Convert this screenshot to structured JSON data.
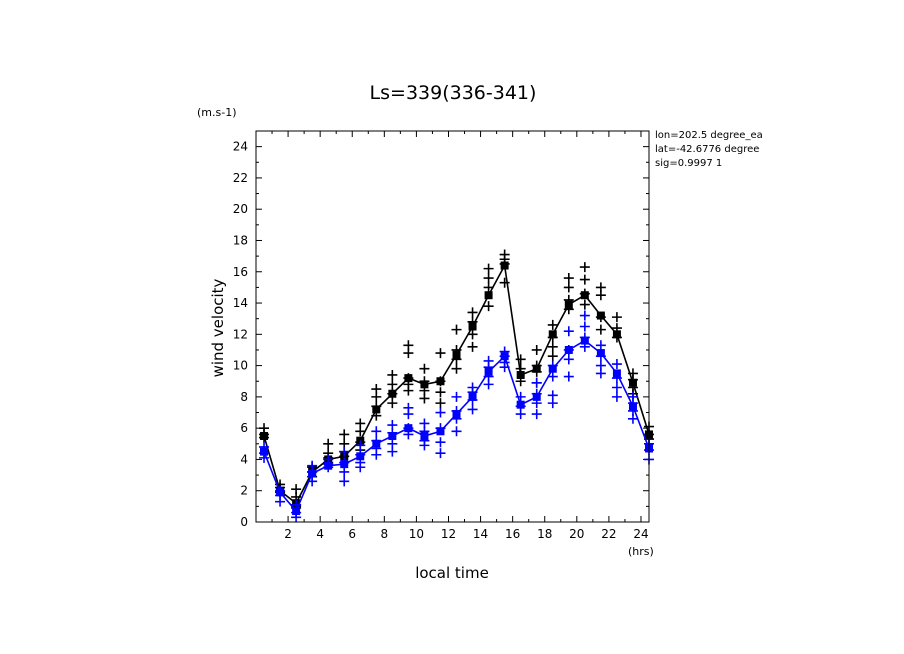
{
  "chart_data": {
    "type": "line",
    "title": "Ls=339(336-341)",
    "xlabel": "local time",
    "ylabel": "wind velocity",
    "y_unit": "(m.s-1)",
    "x_unit": "(hrs)",
    "xlim": [
      0,
      24.5
    ],
    "ylim": [
      0,
      25
    ],
    "x_ticks": [
      2,
      4,
      6,
      8,
      10,
      12,
      14,
      16,
      18,
      20,
      22,
      24
    ],
    "y_ticks": [
      0,
      2,
      4,
      6,
      8,
      10,
      12,
      14,
      16,
      18,
      20,
      22,
      24
    ],
    "annotations": [
      "lon=202.5 degree_ea",
      "lat=-42.6776 degree",
      "sig=0.9997 1"
    ],
    "x": [
      0.5,
      1.5,
      2.5,
      3.5,
      4.5,
      5.5,
      6.5,
      7.5,
      8.5,
      9.5,
      10.5,
      11.5,
      12.5,
      13.5,
      14.5,
      15.5,
      16.5,
      17.5,
      18.5,
      19.5,
      20.5,
      21.5,
      22.5,
      23.5,
      24.5
    ],
    "series": [
      {
        "color": "#000000",
        "values": [
          5.5,
          2.0,
          1.2,
          3.2,
          4.0,
          4.2,
          5.2,
          7.2,
          8.2,
          9.2,
          8.8,
          9.0,
          10.7,
          12.5,
          14.5,
          16.4,
          9.4,
          9.8,
          12.0,
          13.9,
          14.5,
          13.2,
          12.0,
          8.9,
          5.6
        ],
        "scatter": [
          [
            5.6,
            6.0,
            5.4
          ],
          [
            2.4,
            2.2,
            1.9
          ],
          [
            2.1,
            1.6,
            1.0,
            0.9
          ],
          [
            3.5,
            3.2,
            2.9
          ],
          [
            5.0,
            4.4,
            4.1,
            3.8
          ],
          [
            5.6,
            5.0,
            4.5,
            4.2
          ],
          [
            6.3,
            5.8,
            5.1,
            4.6
          ],
          [
            8.5,
            8.0,
            7.4,
            6.8
          ],
          [
            9.4,
            8.8,
            8.2,
            7.6
          ],
          [
            11.3,
            10.8,
            9.2,
            8.8,
            8.4
          ],
          [
            9.8,
            9.0,
            8.4,
            7.9
          ],
          [
            10.8,
            9.0,
            8.3,
            7.6
          ],
          [
            12.3,
            11.0,
            10.4,
            9.8
          ],
          [
            13.4,
            12.8,
            12.0,
            11.2
          ],
          [
            16.2,
            15.6,
            15.0,
            13.8
          ],
          [
            17.1,
            16.8,
            16.5,
            15.3
          ],
          [
            10.4,
            9.8,
            9.0
          ],
          [
            11.0,
            10.0,
            9.6,
            8.9
          ],
          [
            12.6,
            11.8,
            11.2,
            10.6
          ],
          [
            15.6,
            15.0,
            14.2,
            13.6
          ],
          [
            16.3,
            15.5,
            14.6,
            13.9
          ],
          [
            15.0,
            14.5,
            13.1,
            12.3
          ],
          [
            13.1,
            12.4,
            11.8
          ],
          [
            9.5,
            9.1,
            8.6,
            8.2
          ],
          [
            6.1,
            5.6,
            5.3
          ]
        ]
      },
      {
        "color": "#0000ff",
        "values": [
          4.5,
          1.9,
          0.7,
          3.1,
          3.6,
          3.7,
          4.2,
          5.0,
          5.5,
          6.0,
          5.5,
          5.8,
          6.9,
          8.0,
          9.6,
          10.6,
          7.5,
          8.0,
          9.8,
          11.0,
          11.6,
          10.8,
          9.5,
          7.4,
          4.7
        ],
        "scatter": [
          [
            4.8,
            4.4,
            4.1
          ],
          [
            2.0,
            1.7,
            1.3
          ],
          [
            1.1,
            0.6,
            0.3
          ],
          [
            3.6,
            3.2,
            2.6
          ],
          [
            4.0,
            3.7,
            3.5
          ],
          [
            4.5,
            3.8,
            3.2,
            2.6
          ],
          [
            4.9,
            4.3,
            3.8,
            3.5
          ],
          [
            5.8,
            5.2,
            4.7,
            4.3
          ],
          [
            6.2,
            5.7,
            5.0,
            4.5
          ],
          [
            7.3,
            6.9,
            6.0,
            5.6
          ],
          [
            6.3,
            5.8,
            5.2,
            4.9
          ],
          [
            7.0,
            6.0,
            5.1,
            4.4
          ],
          [
            8.0,
            7.1,
            6.6,
            5.8
          ],
          [
            8.6,
            8.3,
            7.8,
            7.2
          ],
          [
            10.3,
            9.9,
            9.3,
            8.8
          ],
          [
            10.9,
            10.6,
            10.2,
            9.9
          ],
          [
            8.0,
            7.4,
            6.9
          ],
          [
            8.9,
            8.2,
            7.6,
            6.9
          ],
          [
            10.0,
            9.3,
            8.1,
            7.6
          ],
          [
            12.2,
            11.0,
            10.4,
            9.3
          ],
          [
            13.2,
            12.5,
            11.8,
            11.2
          ],
          [
            11.3,
            10.6,
            10.0,
            9.5
          ],
          [
            10.1,
            9.2,
            8.6,
            8.0
          ],
          [
            8.0,
            7.6,
            7.1,
            6.6
          ],
          [
            5.0,
            4.6,
            4.0
          ]
        ]
      }
    ]
  }
}
